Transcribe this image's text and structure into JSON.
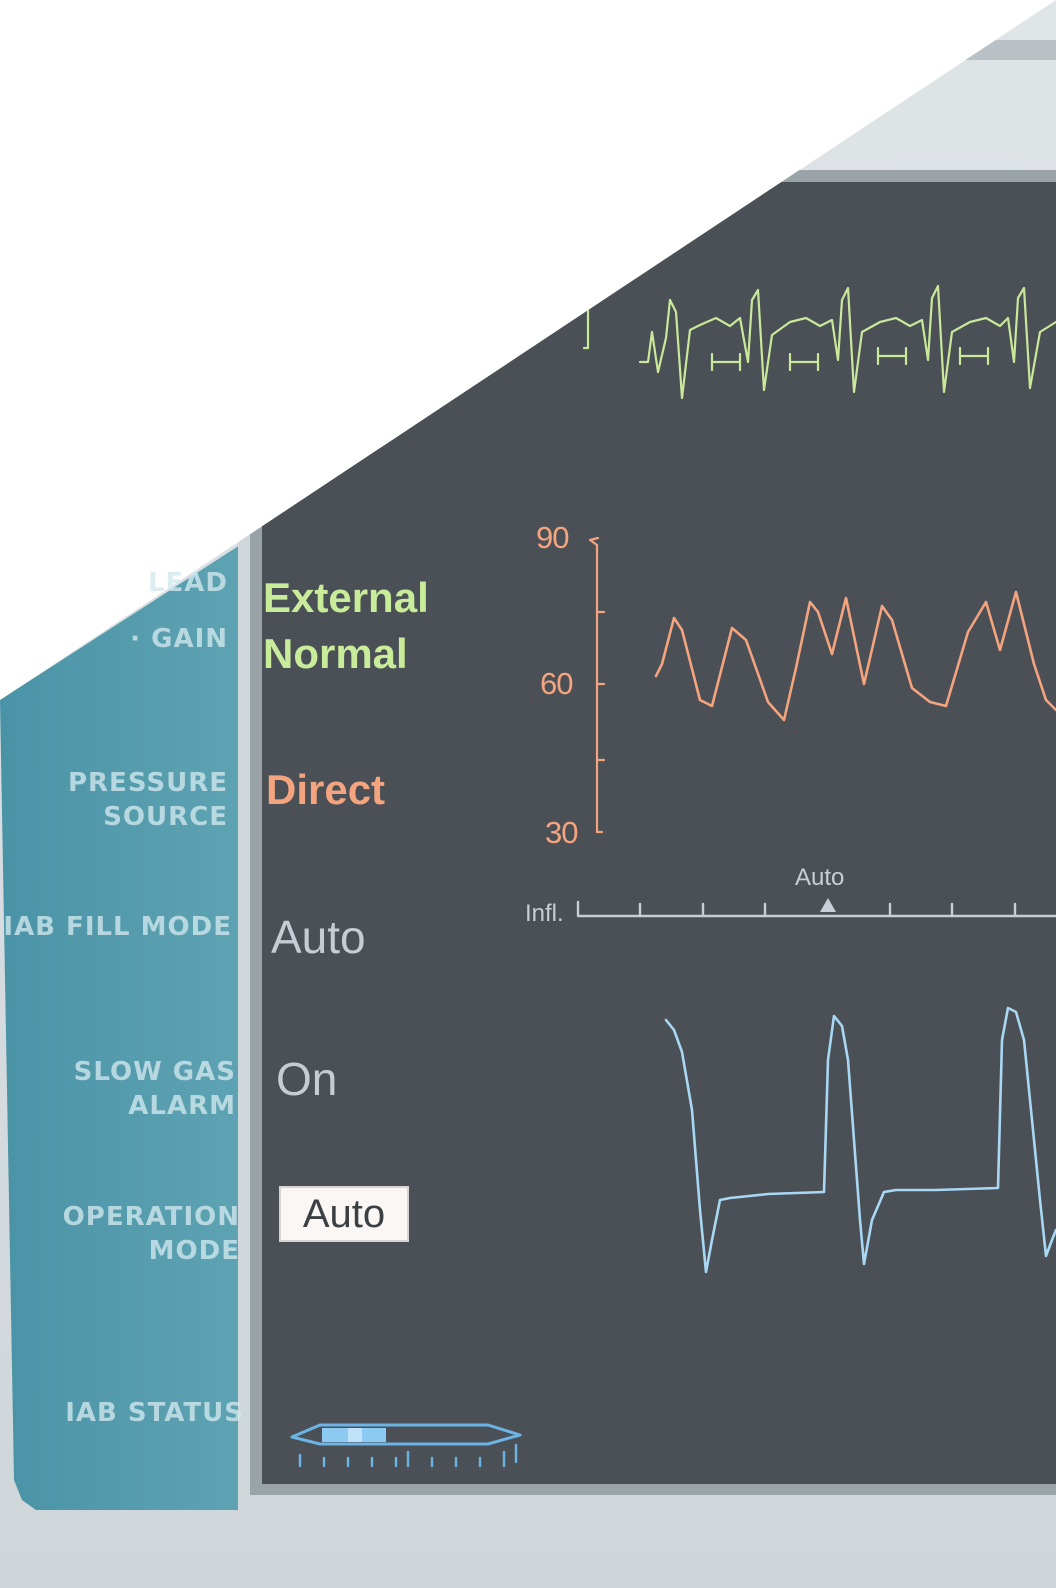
{
  "labels": {
    "lead": "LEAD",
    "gain": "· GAIN",
    "pressure_source": "PRESSURE\nSOURCE",
    "iab_fill_mode": "IAB FILL MODE",
    "slow_gas_alarm": "SLOW GAS\nALARM",
    "operation_mode": "OPERATION\nMODE",
    "iab_status": "IAB STATUS"
  },
  "values": {
    "lead": "External",
    "gain": "Normal",
    "pressure_source": "Direct",
    "iab_fill_mode": "Auto",
    "slow_gas_alarm": "On",
    "operation_mode": "Auto"
  },
  "pressure_scale": {
    "max": "90",
    "mid": "60",
    "min": "30"
  },
  "timing_bar": {
    "label": "Infl.",
    "marker": "Auto"
  },
  "colors": {
    "ecg": "#c9e89a",
    "pressure": "#f4a47e",
    "balloon": "#a9d8f4",
    "screen": "#4a5055",
    "panel": "#4c97a8"
  }
}
